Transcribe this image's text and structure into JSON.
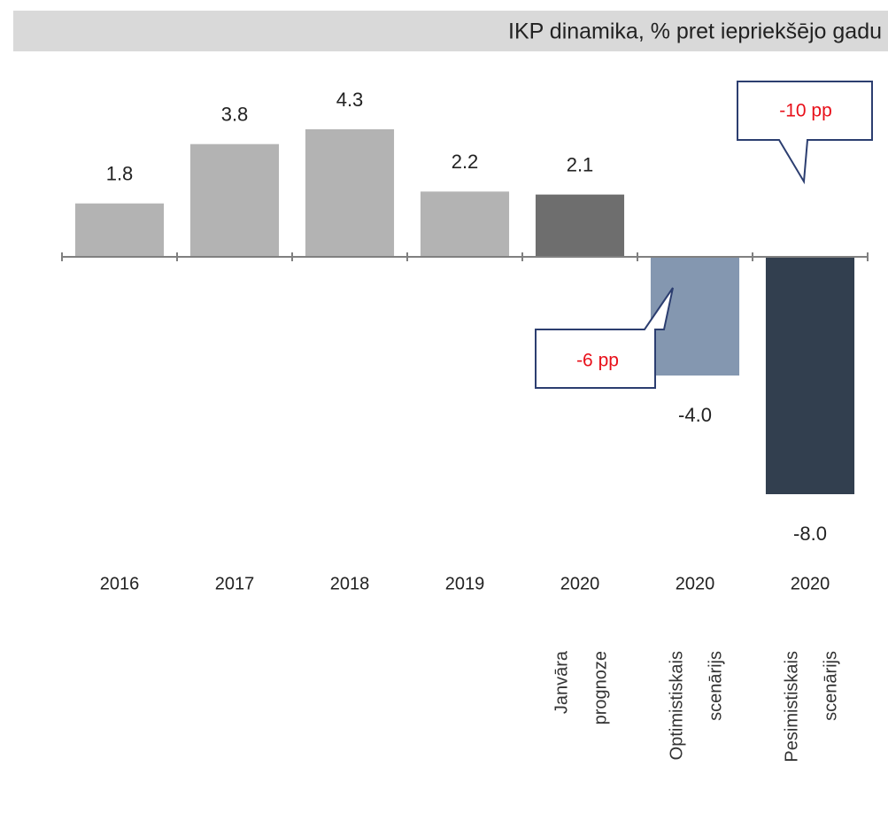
{
  "chart_data": {
    "type": "bar",
    "title": "IKP dinamika, % pret iepriekšējo gadu",
    "categories": [
      "2016",
      "2017",
      "2018",
      "2019",
      "2020",
      "2020",
      "2020"
    ],
    "sublabels": [
      null,
      null,
      null,
      null,
      [
        "Janvāra",
        "prognoze"
      ],
      [
        "Optimistiskais",
        "scenārijs"
      ],
      [
        "Pesimistiskais",
        "scenārijs"
      ]
    ],
    "values": [
      1.8,
      3.8,
      4.3,
      2.2,
      2.1,
      -4.0,
      -8.0
    ],
    "value_labels": [
      "1.8",
      "3.8",
      "4.3",
      "2.2",
      "2.1",
      "-4.0",
      "-8.0"
    ],
    "colors": [
      "#b3b3b3",
      "#b3b3b3",
      "#b3b3b3",
      "#b3b3b3",
      "#6e6e6e",
      "#8497b0",
      "#323f4f"
    ],
    "ylim": [
      -10,
      6
    ],
    "annotations": [
      "-10 pp",
      "-6 pp"
    ]
  }
}
